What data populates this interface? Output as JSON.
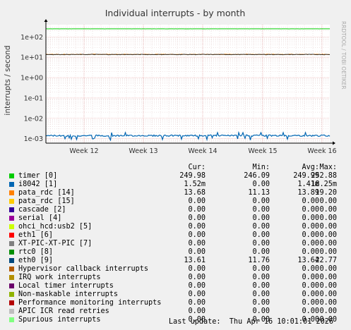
{
  "colors": {
    "background": "#f0f0f0",
    "plot_background": "#ffffff",
    "grid_minor": "#e0c8c8",
    "grid_major": "#e6a0a0",
    "axis": "#000000",
    "side_text": "#aaaaaa"
  },
  "side_label": "RRDTOOL / TOBI OETIKER",
  "chart_data": {
    "type": "line",
    "title": "Individual interrupts - by month",
    "ylabel": "interrupts / second",
    "yscale": "log",
    "ylim": [
      0.0006,
      400
    ],
    "y_ticks": [
      {
        "value": 100,
        "label": "1e+02"
      },
      {
        "value": 10,
        "label": "1e+01"
      },
      {
        "value": 1,
        "label": "1e+00"
      },
      {
        "value": 0.1,
        "label": "1e-01"
      },
      {
        "value": 0.01,
        "label": "1e-02"
      },
      {
        "value": 0.001,
        "label": "1e-03"
      }
    ],
    "x_ticks": [
      "Week 12",
      "Week 13",
      "Week 14",
      "Week 15",
      "Week 16"
    ],
    "grid": true,
    "series": [
      {
        "name": "timer [0]",
        "color": "#00cc00",
        "approx_level": 249.99
      },
      {
        "name": "i8042 [1]",
        "color": "#0066b3",
        "approx_level": 0.00141
      },
      {
        "name": "pata_rdc [14]",
        "color": "#ff8000",
        "approx_level": 13.89
      },
      {
        "name": "eth0 [9]",
        "color": "#333333",
        "approx_level": 13.64
      }
    ]
  },
  "legend": {
    "headers": [
      "Cur:",
      "Min:",
      "Avg:",
      "Max:"
    ],
    "rows": [
      {
        "name": "timer [0]",
        "color": "#00cc00",
        "cur": "249.98",
        "min": "246.09",
        "avg": "249.99",
        "max": "252.88"
      },
      {
        "name": "i8042 [1]",
        "color": "#0066b3",
        "cur": "1.52m",
        "min": "0.00",
        "avg": "1.41m",
        "max": "18.25m"
      },
      {
        "name": "pata_rdc [14]",
        "color": "#ff8000",
        "cur": "13.68",
        "min": "11.13",
        "avg": "13.89",
        "max": "19.20"
      },
      {
        "name": "pata_rdc [15]",
        "color": "#ffcc00",
        "cur": "0.00",
        "min": "0.00",
        "avg": "0.00",
        "max": "0.00"
      },
      {
        "name": "cascade [2]",
        "color": "#330099",
        "cur": "0.00",
        "min": "0.00",
        "avg": "0.00",
        "max": "0.00"
      },
      {
        "name": "serial [4]",
        "color": "#990099",
        "cur": "0.00",
        "min": "0.00",
        "avg": "0.00",
        "max": "0.00"
      },
      {
        "name": "ohci_hcd:usb2 [5]",
        "color": "#ccff00",
        "cur": "0.00",
        "min": "0.00",
        "avg": "0.00",
        "max": "0.00"
      },
      {
        "name": "eth1 [6]",
        "color": "#ff0000",
        "cur": "0.00",
        "min": "0.00",
        "avg": "0.00",
        "max": "0.00"
      },
      {
        "name": "XT-PIC-XT-PIC [7]",
        "color": "#808080",
        "cur": "0.00",
        "min": "0.00",
        "avg": "0.00",
        "max": "0.00"
      },
      {
        "name": "rtc0 [8]",
        "color": "#008f00",
        "cur": "0.00",
        "min": "0.00",
        "avg": "0.00",
        "max": "0.00"
      },
      {
        "name": "eth0 [9]",
        "color": "#00487d",
        "cur": "13.61",
        "min": "11.76",
        "avg": "13.64",
        "max": "22.77"
      },
      {
        "name": "Hypervisor callback interrupts",
        "color": "#b35a00",
        "cur": "0.00",
        "min": "0.00",
        "avg": "0.00",
        "max": "0.00"
      },
      {
        "name": "IRQ work interrupts",
        "color": "#b38f00",
        "cur": "0.00",
        "min": "0.00",
        "avg": "0.00",
        "max": "0.00"
      },
      {
        "name": "Local timer interrupts",
        "color": "#6b006b",
        "cur": "0.00",
        "min": "0.00",
        "avg": "0.00",
        "max": "0.00"
      },
      {
        "name": "Non-maskable interrupts",
        "color": "#8fb300",
        "cur": "0.00",
        "min": "0.00",
        "avg": "0.00",
        "max": "0.00"
      },
      {
        "name": "Performance monitoring interrupts",
        "color": "#b30000",
        "cur": "0.00",
        "min": "0.00",
        "avg": "0.00",
        "max": "0.00"
      },
      {
        "name": "APIC ICR read retries",
        "color": "#bebebe",
        "cur": "0.00",
        "min": "0.00",
        "avg": "0.00",
        "max": "0.00"
      },
      {
        "name": "Spurious interrupts",
        "color": "#80ff80",
        "cur": "0.00",
        "min": "0.00",
        "avg": "0.00",
        "max": "0.00"
      }
    ]
  },
  "last_update": "Last update:  Thu Apr 16 10:01:01 2026"
}
